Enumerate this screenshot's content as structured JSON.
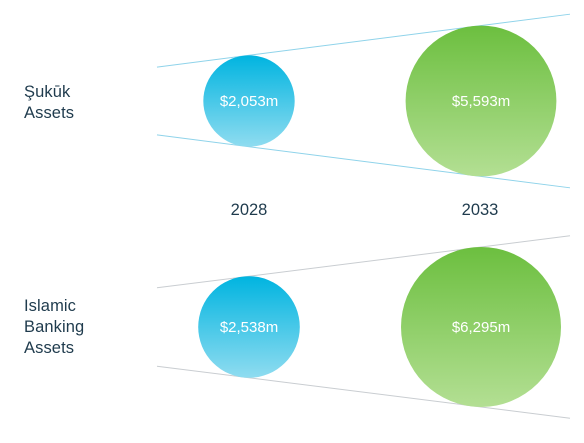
{
  "chart_data": {
    "type": "bubble",
    "title": "",
    "categories": [
      "2028",
      "2033"
    ],
    "series": [
      {
        "name": "Şukūk Assets",
        "label_lines": [
          "Şukūk",
          "Assets"
        ],
        "values": [
          2053,
          5593
        ],
        "value_labels": [
          "$2,053m",
          "$5,593m"
        ],
        "unit": "$m"
      },
      {
        "name": "Islamic Banking Assets",
        "label_lines": [
          "Islamic",
          "Banking",
          "Assets"
        ],
        "values": [
          2538,
          6295
        ],
        "value_labels": [
          "$2,538m",
          "$6,295m"
        ],
        "unit": "$m"
      }
    ],
    "colors": {
      "year_2028_top": "#00b4e0",
      "year_2028_bottom": "#8fdcf0",
      "year_2033_top": "#6cbf3f",
      "year_2033_bottom": "#b3df93",
      "sukuk_guides": "#8fd3ea",
      "banking_guides": "#c9cdd1",
      "label_text": "#1f3b4d",
      "value_text": "#ffffff"
    }
  }
}
